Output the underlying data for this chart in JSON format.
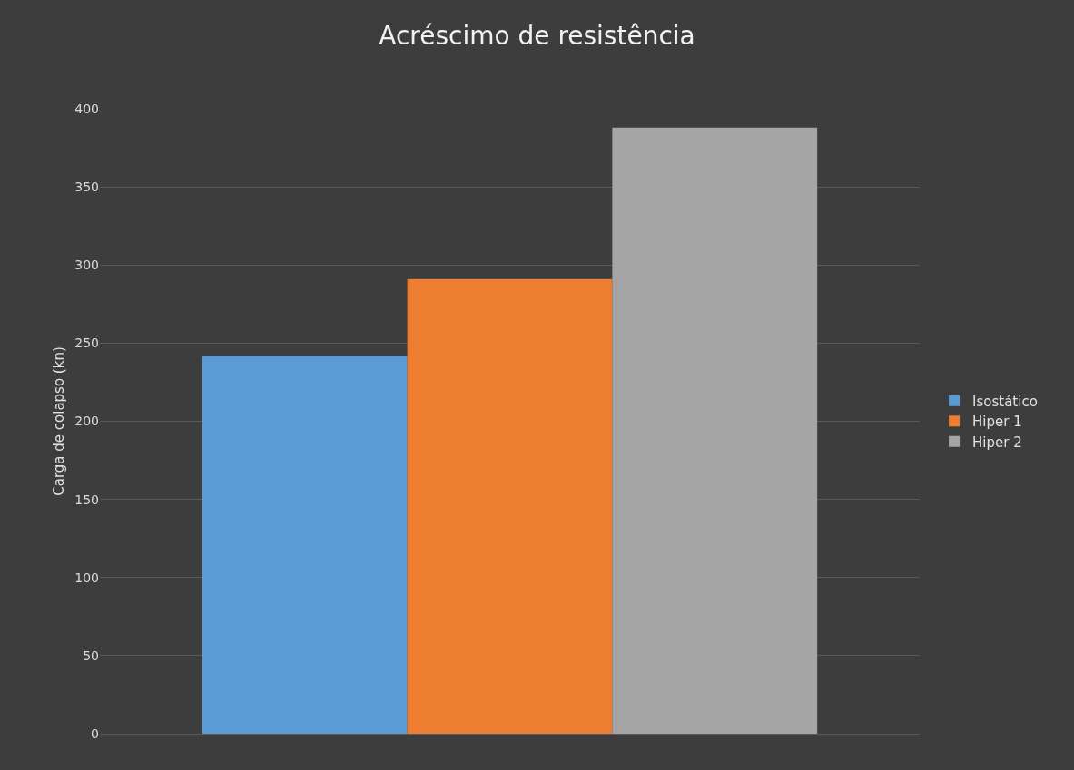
{
  "chart_data": {
    "type": "bar",
    "title": "Acréscimo de resistência",
    "ylabel": "Carga de colapso (kn)",
    "categories": [
      null
    ],
    "series": [
      {
        "name": "Isostático",
        "color": "#5b9bd5",
        "values": [
          242
        ]
      },
      {
        "name": "Hiper 1",
        "color": "#ed7d31",
        "values": [
          291
        ]
      },
      {
        "name": "Hiper 2",
        "color": "#a5a5a5",
        "values": [
          388
        ]
      }
    ],
    "ylim": [
      0,
      400
    ],
    "yticks": [
      0,
      50,
      100,
      150,
      200,
      250,
      300,
      350,
      400
    ],
    "grid": "y",
    "legend": "right"
  }
}
